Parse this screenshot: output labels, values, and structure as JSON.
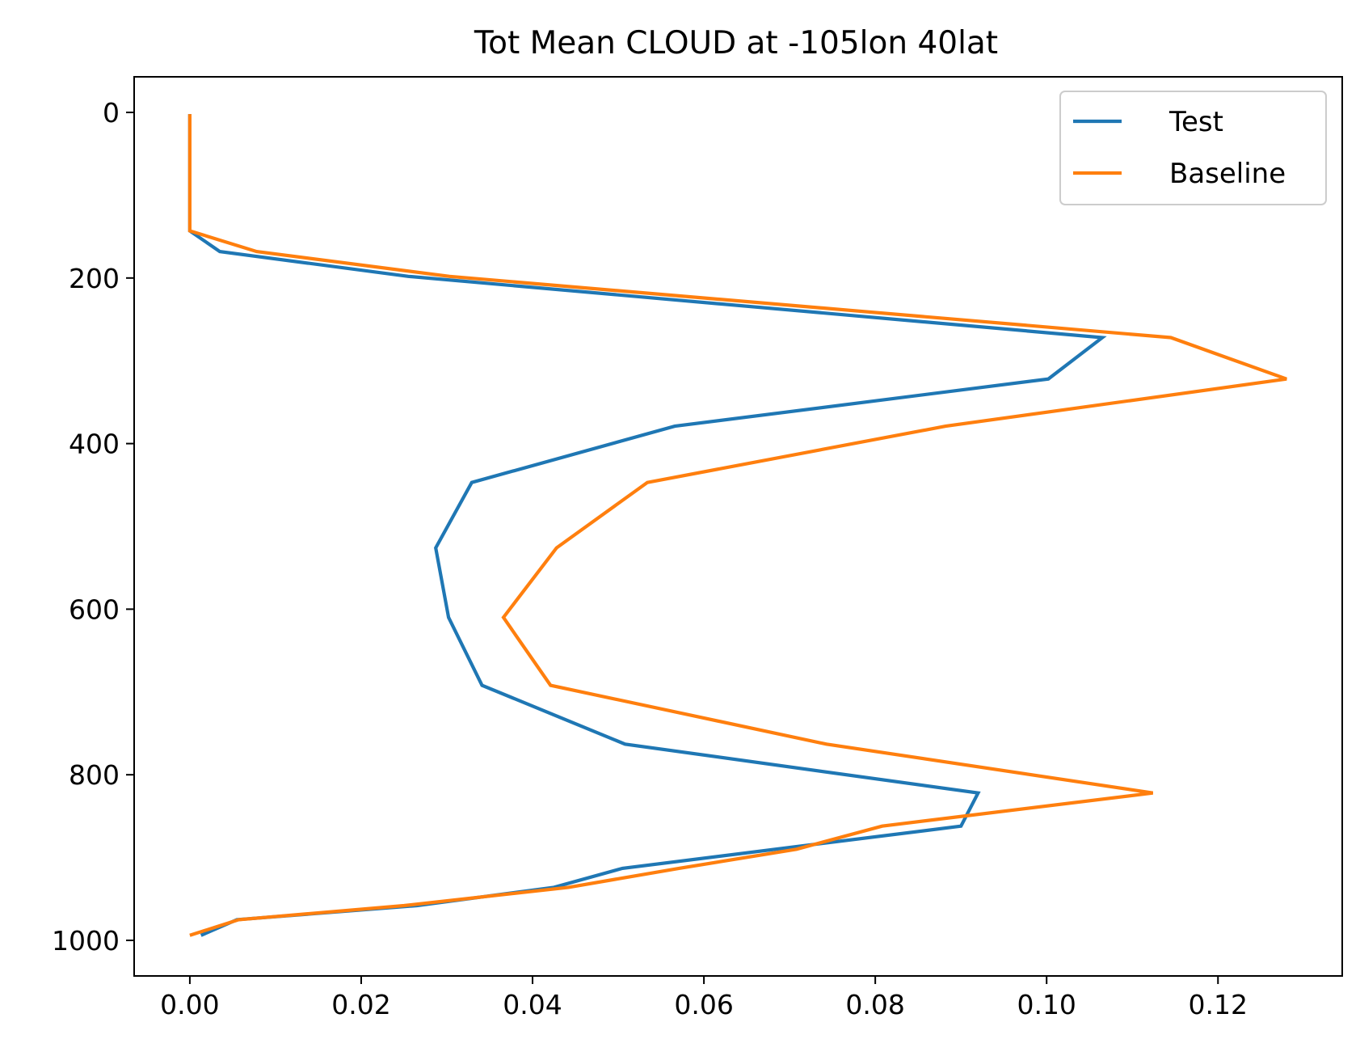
{
  "chart_data": {
    "type": "line",
    "title": "Tot Mean CLOUD at -105lon 40lat",
    "xlabel": "",
    "ylabel": "",
    "xlim": [
      -0.0065,
      0.1345
    ],
    "ylim": [
      1043,
      -43
    ],
    "y_inverted": true,
    "xticks": [
      0.0,
      0.02,
      0.04,
      0.06,
      0.08,
      0.1,
      0.12
    ],
    "xtick_labels": [
      "0.00",
      "0.02",
      "0.04",
      "0.06",
      "0.08",
      "0.10",
      "0.12"
    ],
    "yticks": [
      0,
      200,
      400,
      600,
      800,
      1000
    ],
    "ytick_labels": [
      "0",
      "200",
      "400",
      "600",
      "800",
      "1000"
    ],
    "grid": false,
    "legend_position": "top-right",
    "series": [
      {
        "name": "Test",
        "color": "#1f77b4",
        "x": [
          0.0,
          0.0,
          0.0,
          0.0,
          0.0035,
          0.0255,
          0.1065,
          0.1002,
          0.0566,
          0.0329,
          0.0287,
          0.0302,
          0.0341,
          0.0508,
          0.092,
          0.09,
          0.0505,
          0.0425,
          0.0265,
          0.0055,
          0.0013
        ],
        "y": [
          2,
          50,
          100,
          143,
          168,
          198,
          272,
          322,
          379,
          447,
          526,
          610,
          692,
          763,
          822,
          862,
          913,
          936,
          958,
          975,
          994
        ]
      },
      {
        "name": "Baseline",
        "color": "#ff7f0e",
        "x": [
          0.0,
          0.0,
          0.0,
          0.0,
          0.0078,
          0.0303,
          0.1145,
          0.128,
          0.0882,
          0.0534,
          0.0428,
          0.0366,
          0.0421,
          0.0743,
          0.1124,
          0.0808,
          0.0708,
          0.0571,
          0.0442,
          0.025,
          0.0057,
          0.0
        ],
        "y": [
          2,
          50,
          100,
          143,
          168,
          198,
          272,
          322,
          379,
          447,
          526,
          610,
          692,
          763,
          822,
          862,
          890,
          913,
          936,
          958,
          975,
          994
        ]
      }
    ]
  }
}
